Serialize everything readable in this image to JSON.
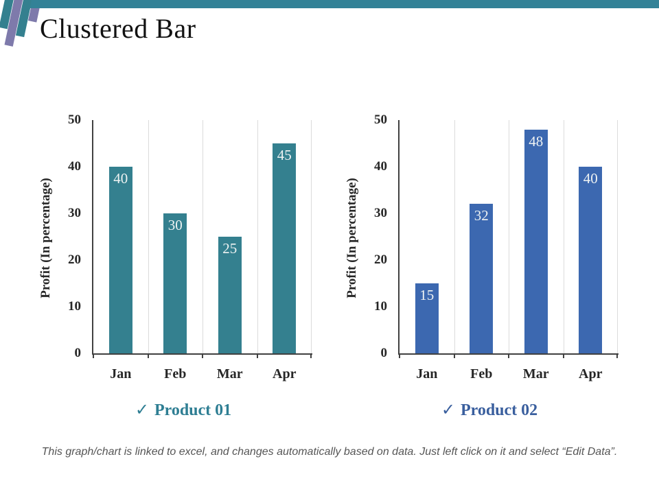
{
  "slide": {
    "title": "Clustered Bar",
    "footer": "This graph/chart is linked to excel, and changes automatically based on data. Just left click on it and select “Edit Data”."
  },
  "decoration": {
    "top_band_color": "#338297",
    "stripe_teal_color": "#34808F",
    "stripe_purple_color": "#7E7AAB"
  },
  "colors": {
    "axis_line": "#404040",
    "axis_text": "#262626",
    "gridline": "#dbdbdb",
    "bar_value_label": "#eff3f3"
  },
  "chart_data": [
    {
      "type": "bar",
      "categories": [
        "Jan",
        "Feb",
        "Mar",
        "Apr"
      ],
      "series": [
        {
          "name": "Product 01",
          "values": [
            40,
            30,
            25,
            45
          ]
        }
      ],
      "data_labels": [
        "40",
        "30",
        "25",
        "45"
      ],
      "title": "",
      "xlabel": "",
      "ylabel": "Profit  (In percentage)",
      "ylim": [
        0,
        50
      ],
      "yticks": [
        "0",
        "10",
        "20",
        "30",
        "40",
        "50"
      ],
      "bar_color": "#34808F",
      "legend_color": "#2E7E93",
      "legend_icon": "checkmark-icon",
      "legend_position": "bottom",
      "grid": "vertical-category-separators"
    },
    {
      "type": "bar",
      "categories": [
        "Jan",
        "Feb",
        "Mar",
        "Apr"
      ],
      "series": [
        {
          "name": "Product 02",
          "values": [
            15,
            32,
            48,
            40
          ]
        }
      ],
      "data_labels": [
        "15",
        "32",
        "48",
        "40"
      ],
      "title": "",
      "xlabel": "",
      "ylabel": "Profit  (In percentage)",
      "ylim": [
        0,
        50
      ],
      "yticks": [
        "0",
        "10",
        "20",
        "30",
        "40",
        "50"
      ],
      "bar_color": "#3C68B0",
      "legend_color": "#3A5F9E",
      "legend_icon": "checkmark-icon",
      "legend_position": "bottom",
      "grid": "vertical-category-separators"
    }
  ]
}
